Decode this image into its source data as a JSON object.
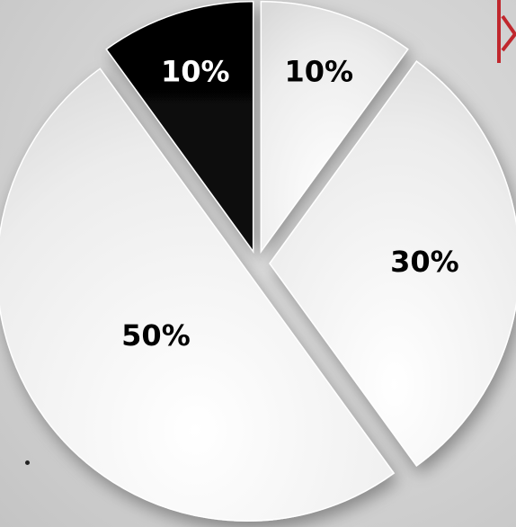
{
  "chart_data": {
    "type": "pie",
    "title": "",
    "slices": [
      {
        "label": "10%",
        "value": 10,
        "color": "#000000",
        "label_color": "#ffffff"
      },
      {
        "label": "10%",
        "value": 10,
        "color": "#f2f2f2",
        "label_color": "#000000"
      },
      {
        "label": "30%",
        "value": 30,
        "color": "#eeeeee",
        "label_color": "#000000"
      },
      {
        "label": "50%",
        "value": 50,
        "color": "#f0f0f0",
        "label_color": "#000000"
      }
    ],
    "exploded": true,
    "legend": "none"
  },
  "colors": {
    "background": "#d6d6d6",
    "accent": "#c0272d"
  }
}
